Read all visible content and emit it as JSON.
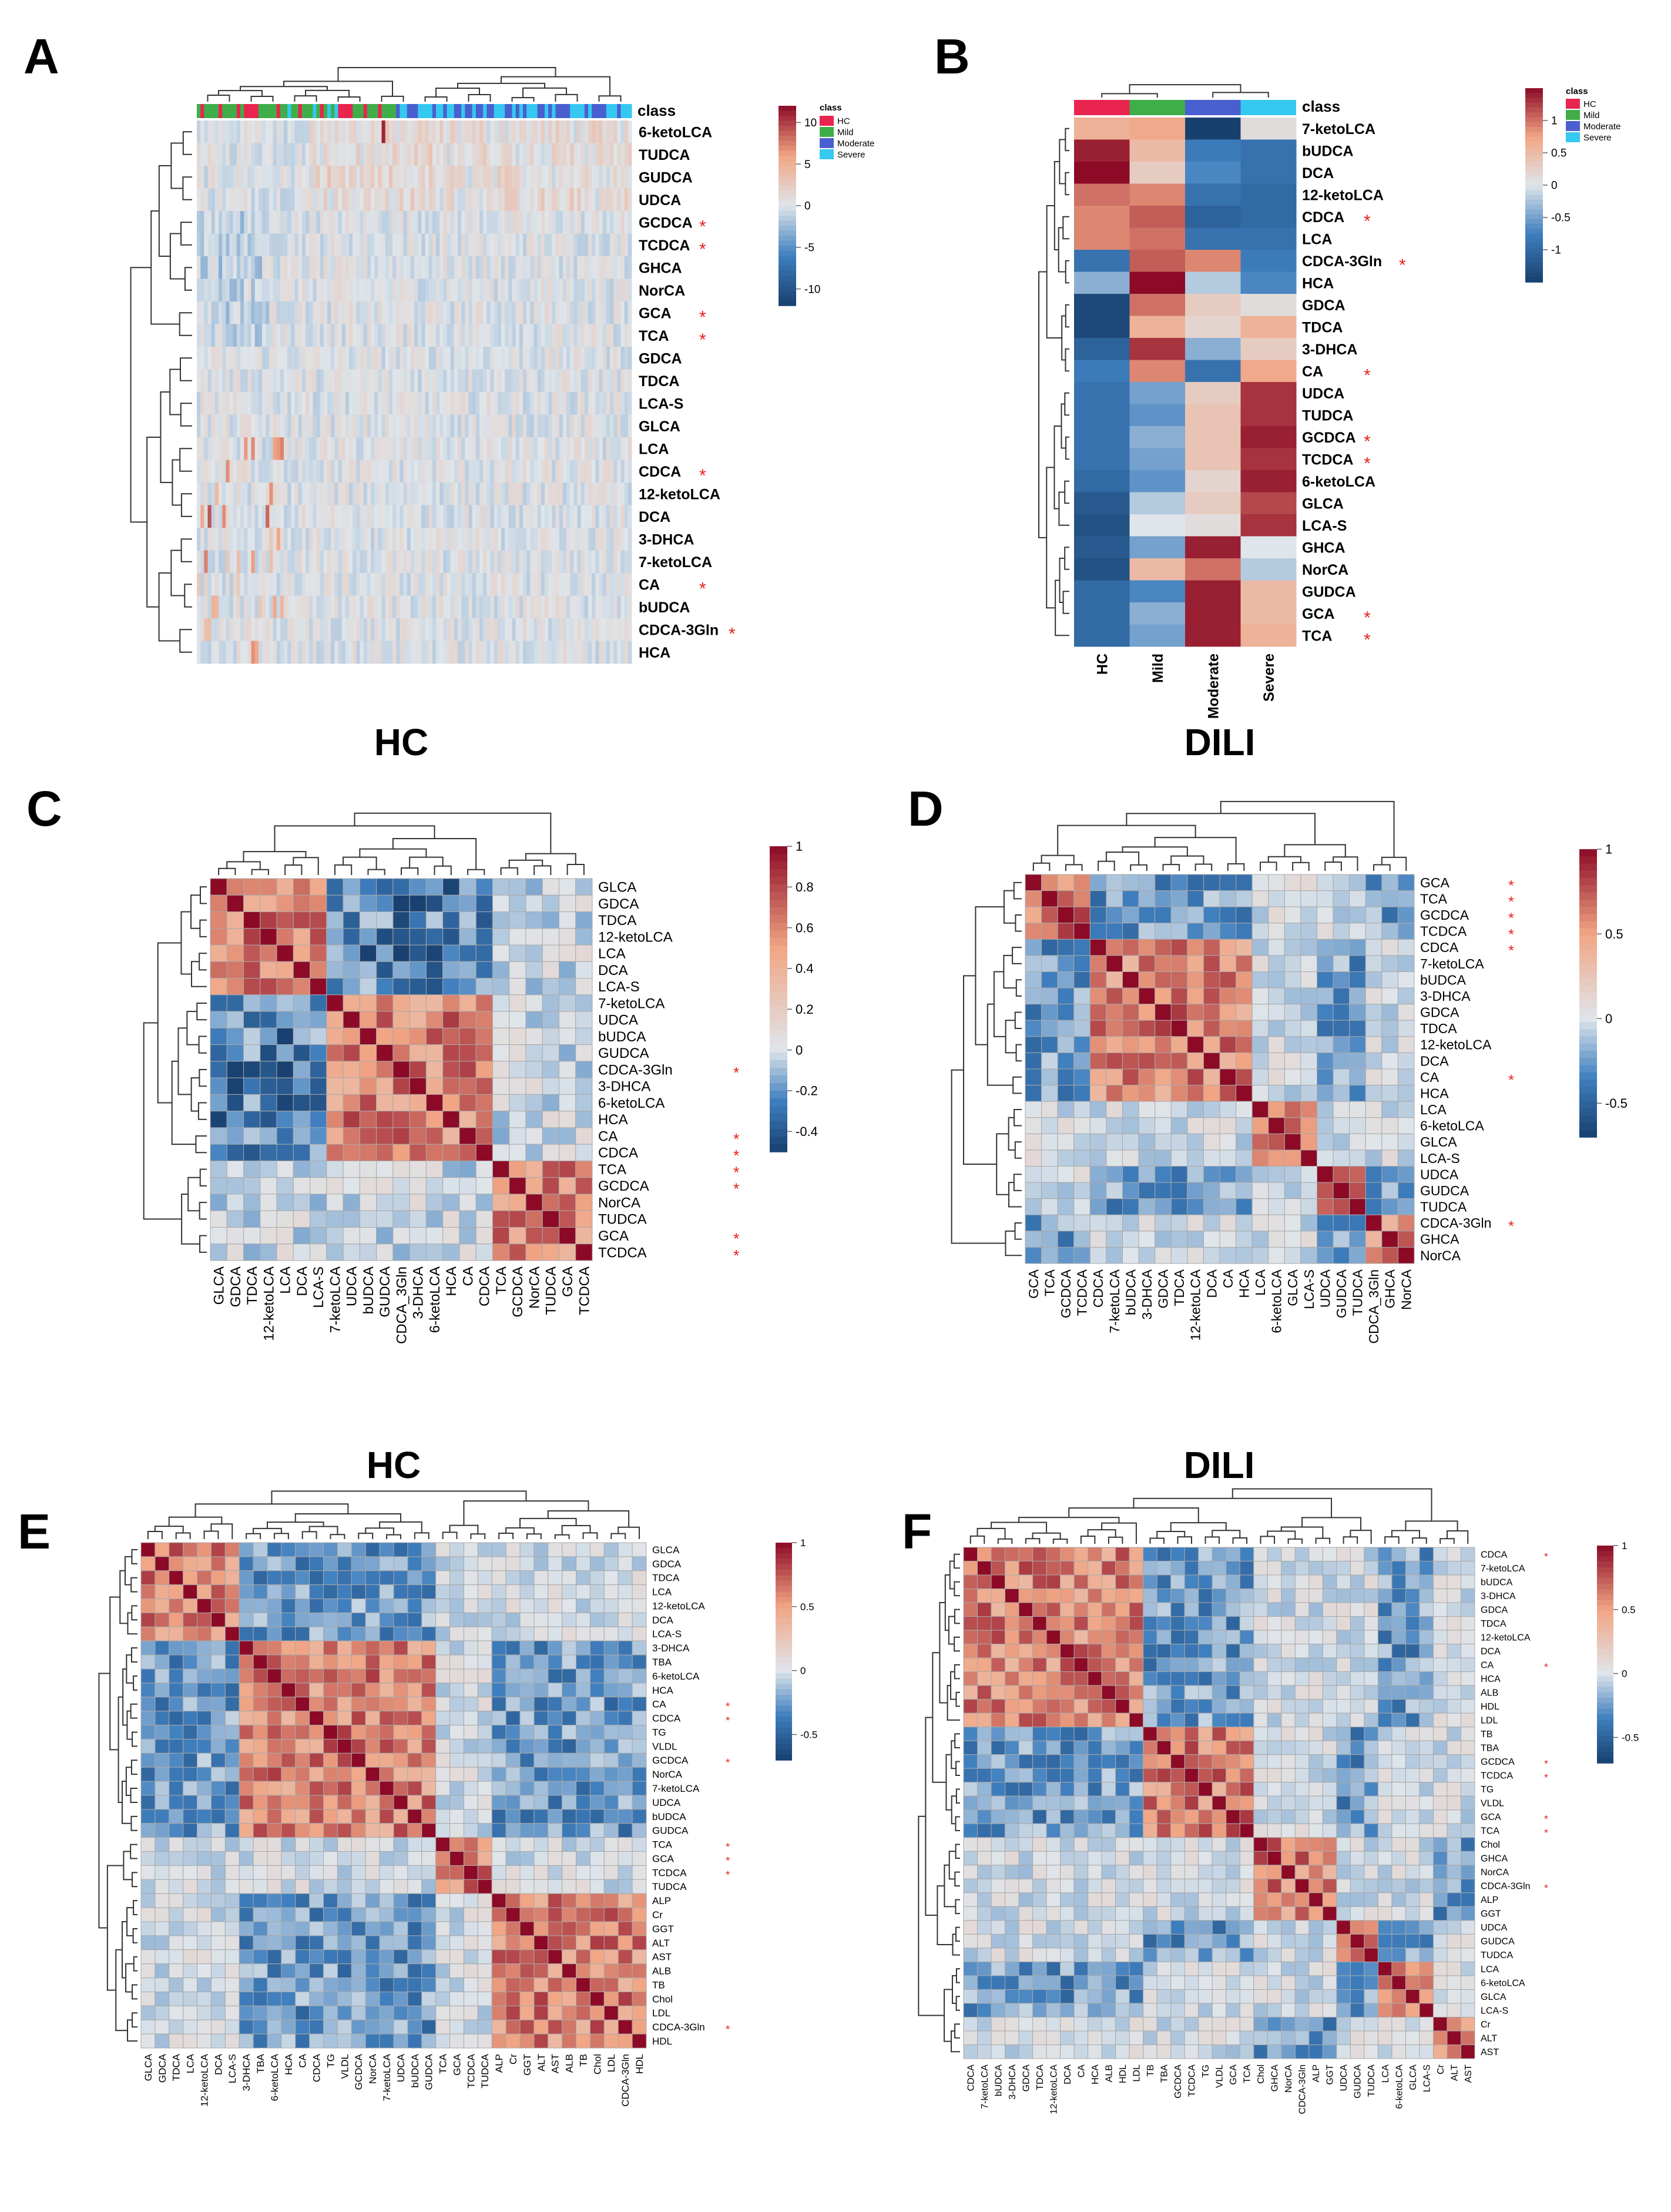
{
  "colors": {
    "neg_strong": "#18406f",
    "neg_mid": "#3f7fbf",
    "neutral": "#dfe5ea",
    "pos_mid": "#f1a584",
    "pos_strong": "#8c0a26",
    "class_hc": "#e8244f",
    "class_mild": "#3fae49",
    "class_moderate": "#4a5fcf",
    "class_severe": "#35c8f0",
    "star": "#e8221c"
  },
  "star_glyph": "*",
  "class_legend": {
    "title": "class",
    "items": [
      "HC",
      "Mild",
      "Moderate",
      "Severe"
    ]
  },
  "chart_data": [
    {
      "panel": "A",
      "type": "heatmap",
      "title": "",
      "annotation_label": "class",
      "rows": [
        "6-ketoLCA",
        "TUDCA",
        "GUDCA",
        "UDCA",
        "GCDCA",
        "TCDCA",
        "GHCA",
        "NorCA",
        "GCA",
        "TCA",
        "GDCA",
        "TDCA",
        "LCA-S",
        "GLCA",
        "LCA",
        "CDCA",
        "12-ketoLCA",
        "DCA",
        "3-DHCA",
        "7-ketoLCA",
        "CA",
        "bUDCA",
        "CDCA-3Gln",
        "HCA"
      ],
      "starred": [
        "GCDCA",
        "TCDCA",
        "GCA",
        "TCA",
        "CDCA",
        "CA",
        "CDCA-3Gln"
      ],
      "n_samples": 120,
      "colorbar_ticks": [
        10,
        5,
        0,
        -5,
        -10
      ],
      "color_range": [
        -12,
        12
      ]
    },
    {
      "panel": "B",
      "type": "heatmap",
      "title": "",
      "annotation_label": "class",
      "columns": [
        "HC",
        "Mild",
        "Moderate",
        "Severe"
      ],
      "rows": [
        "7-ketoLCA",
        "bUDCA",
        "DCA",
        "12-ketoLCA",
        "CDCA",
        "LCA",
        "CDCA-3Gln",
        "HCA",
        "GDCA",
        "TDCA",
        "3-DHCA",
        "CA",
        "UDCA",
        "TUDCA",
        "GCDCA",
        "TCDCA",
        "6-ketoLCA",
        "GLCA",
        "LCA-S",
        "GHCA",
        "NorCA",
        "GUDCA",
        "GCA",
        "TCA"
      ],
      "starred": [
        "CDCA",
        "CDCA-3Gln",
        "CA",
        "GCDCA",
        "TCDCA",
        "GCA",
        "TCA"
      ],
      "values": [
        [
          0.6,
          0.7,
          -1.5,
          0.1
        ],
        [
          1.4,
          0.5,
          -0.8,
          -0.9
        ],
        [
          1.5,
          0.3,
          -0.7,
          -0.9
        ],
        [
          1.0,
          0.9,
          -0.9,
          -1.0
        ],
        [
          0.9,
          1.1,
          -1.1,
          -1.0
        ],
        [
          0.9,
          1.0,
          -0.9,
          -0.9
        ],
        [
          -0.9,
          1.1,
          0.9,
          -0.8
        ],
        [
          -0.4,
          1.5,
          -0.2,
          -0.7
        ],
        [
          -1.4,
          1.0,
          0.3,
          0.1
        ],
        [
          -1.4,
          0.6,
          0.2,
          0.6
        ],
        [
          -1.1,
          1.3,
          -0.4,
          0.3
        ],
        [
          -0.8,
          0.9,
          -0.9,
          0.7
        ],
        [
          -0.9,
          -0.5,
          0.3,
          1.3
        ],
        [
          -0.9,
          -0.6,
          0.4,
          1.3
        ],
        [
          -0.9,
          -0.4,
          0.4,
          1.4
        ],
        [
          -0.9,
          -0.5,
          0.4,
          1.3
        ],
        [
          -1.0,
          -0.6,
          0.2,
          1.4
        ],
        [
          -1.2,
          -0.2,
          0.3,
          1.2
        ],
        [
          -1.3,
          0.0,
          0.1,
          1.3
        ],
        [
          -1.2,
          -0.5,
          1.4,
          0.0
        ],
        [
          -1.3,
          0.5,
          1.0,
          -0.2
        ],
        [
          -1.0,
          -0.7,
          1.4,
          0.5
        ],
        [
          -1.0,
          -0.4,
          1.4,
          0.5
        ],
        [
          -1.0,
          -0.5,
          1.4,
          0.6
        ]
      ],
      "colorbar_ticks": [
        1,
        0.5,
        0,
        -0.5,
        -1
      ],
      "color_range": [
        -1.5,
        1.5
      ]
    },
    {
      "panel": "C",
      "type": "heatmap",
      "title": "HC",
      "variables": [
        "GLCA",
        "GDCA",
        "TDCA",
        "12-ketoLCA",
        "LCA",
        "DCA",
        "LCA-S",
        "7-ketoLCA",
        "UDCA",
        "bUDCA",
        "GUDCA",
        "CDCA-3Gln",
        "3-DHCA",
        "6-ketoLCA",
        "HCA",
        "CA",
        "CDCA",
        "TCA",
        "GCDCA",
        "NorCA",
        "TUDCA",
        "GCA",
        "TCDCA"
      ],
      "x_labels": [
        "GLCA",
        "GDCA",
        "TDCA",
        "12-ketoLCA",
        "LCA",
        "DCA",
        "LCA-S",
        "7-ketoLCA",
        "UDCA",
        "bUDCA",
        "GUDCA",
        "CDCA_3Gln",
        "3-DHCA",
        "6-ketoLCA",
        "HCA",
        "CA",
        "CDCA",
        "TCA",
        "GCDCA",
        "NorCA",
        "TUDCA",
        "GCA",
        "TCDCA"
      ],
      "starred": [
        "CDCA-3Gln",
        "CA",
        "CDCA",
        "TCA",
        "GCDCA",
        "GCA",
        "TCDCA"
      ],
      "blocks": [
        [
          0,
          7
        ],
        [
          7,
          17
        ],
        [
          17,
          23
        ]
      ],
      "colorbar_ticks": [
        1,
        0.8,
        0.6,
        0.4,
        0.2,
        0,
        -0.2,
        -0.4
      ],
      "color_range": [
        -0.5,
        1
      ]
    },
    {
      "panel": "D",
      "type": "heatmap",
      "title": "DILI",
      "variables": [
        "GCA",
        "TCA",
        "GCDCA",
        "TCDCA",
        "CDCA",
        "7-ketoLCA",
        "bUDCA",
        "3-DHCA",
        "GDCA",
        "TDCA",
        "12-ketoLCA",
        "DCA",
        "CA",
        "HCA",
        "LCA",
        "6-ketoLCA",
        "GLCA",
        "LCA-S",
        "UDCA",
        "GUDCA",
        "TUDCA",
        "CDCA-3Gln",
        "GHCA",
        "NorCA"
      ],
      "x_labels": [
        "GCA",
        "TCA",
        "GCDCA",
        "TCDCA",
        "CDCA",
        "7-ketoLCA",
        "bUDCA",
        "3-DHCA",
        "GDCA",
        "TDCA",
        "12-ketoLCA",
        "DCA",
        "CA",
        "HCA",
        "LCA",
        "6-ketoLCA",
        "GLCA",
        "LCA-S",
        "UDCA",
        "GUDCA",
        "TUDCA",
        "CDCA_3Gln",
        "GHCA",
        "NorCA"
      ],
      "starred": [
        "GCA",
        "TCA",
        "GCDCA",
        "TCDCA",
        "CDCA",
        "CA",
        "CDCA-3Gln"
      ],
      "blocks": [
        [
          0,
          4
        ],
        [
          4,
          14
        ],
        [
          14,
          18
        ],
        [
          18,
          21
        ],
        [
          21,
          24
        ]
      ],
      "colorbar_ticks": [
        1,
        0.5,
        0,
        -0.5
      ],
      "color_range": [
        -0.7,
        1
      ]
    },
    {
      "panel": "E",
      "type": "heatmap",
      "title": "HC",
      "variables": [
        "GLCA",
        "GDCA",
        "TDCA",
        "LCA",
        "12-ketoLCA",
        "DCA",
        "LCA-S",
        "3-DHCA",
        "TBA",
        "6-ketoLCA",
        "HCA",
        "CA",
        "CDCA",
        "TG",
        "VLDL",
        "GCDCA",
        "NorCA",
        "7-ketoLCA",
        "UDCA",
        "bUDCA",
        "GUDCA",
        "TCA",
        "GCA",
        "TCDCA",
        "TUDCA",
        "ALP",
        "Cr",
        "GGT",
        "ALT",
        "AST",
        "ALB",
        "TB",
        "Chol",
        "LDL",
        "CDCA-3Gln",
        "HDL"
      ],
      "x_labels": [
        "GLCA",
        "GDCA",
        "TDCA",
        "LCA",
        "12-ketoLCA",
        "DCA",
        "LCA-S",
        "3-DHCA",
        "TBA",
        "6-ketoLCA",
        "HCA",
        "CA",
        "CDCA",
        "TG",
        "VLDL",
        "GCDCA",
        "NorCA",
        "7-ketoLCA",
        "UDCA",
        "bUDCA",
        "GUDCA",
        "TCA",
        "GCA",
        "TCDCA",
        "TUDCA",
        "ALP",
        "Cr",
        "GGT",
        "ALT",
        "AST",
        "ALB",
        "TB",
        "Chol",
        "LDL",
        "CDCA-3Gln",
        "HDL"
      ],
      "starred": [
        "CA",
        "CDCA",
        "GCDCA",
        "TCA",
        "GCA",
        "TCDCA",
        "CDCA-3Gln"
      ],
      "blocks": [
        [
          0,
          7
        ],
        [
          7,
          21
        ],
        [
          21,
          25
        ],
        [
          25,
          36
        ]
      ],
      "colorbar_ticks": [
        1,
        0.5,
        0,
        -0.5
      ],
      "color_range": [
        -0.7,
        1
      ]
    },
    {
      "panel": "F",
      "type": "heatmap",
      "title": "DILI",
      "variables": [
        "CDCA",
        "7-ketoLCA",
        "bUDCA",
        "3-DHCA",
        "GDCA",
        "TDCA",
        "12-ketoLCA",
        "DCA",
        "CA",
        "HCA",
        "ALB",
        "HDL",
        "LDL",
        "TB",
        "TBA",
        "GCDCA",
        "TCDCA",
        "TG",
        "VLDL",
        "GCA",
        "TCA",
        "Chol",
        "GHCA",
        "NorCA",
        "CDCA-3Gln",
        "ALP",
        "GGT",
        "UDCA",
        "GUDCA",
        "TUDCA",
        "LCA",
        "6-ketoLCA",
        "GLCA",
        "LCA-S",
        "Cr",
        "ALT",
        "AST"
      ],
      "x_labels": [
        "CDCA",
        "7-ketoLCA",
        "bUDCA",
        "3-DHCA",
        "GDCA",
        "TDCA",
        "12-ketoLCA",
        "DCA",
        "CA",
        "HCA",
        "ALB",
        "HDL",
        "LDL",
        "TB",
        "TBA",
        "GCDCA",
        "TCDCA",
        "TG",
        "VLDL",
        "GCA",
        "TCA",
        "Chol",
        "GHCA",
        "NorCA",
        "CDCA-3Gln",
        "ALP",
        "GGT",
        "UDCA",
        "GUDCA",
        "TUDCA",
        "LCA",
        "6-ketoLCA",
        "GLCA",
        "LCA-S",
        "Cr",
        "ALT",
        "AST"
      ],
      "starred": [
        "CDCA",
        "CA",
        "GCDCA",
        "TCDCA",
        "GCA",
        "TCA",
        "CDCA-3Gln"
      ],
      "blocks": [
        [
          0,
          13
        ],
        [
          13,
          21
        ],
        [
          21,
          27
        ],
        [
          27,
          30
        ],
        [
          30,
          34
        ],
        [
          34,
          37
        ]
      ],
      "colorbar_ticks": [
        1,
        0.5,
        0,
        -0.5
      ],
      "color_range": [
        -0.7,
        1
      ]
    }
  ]
}
